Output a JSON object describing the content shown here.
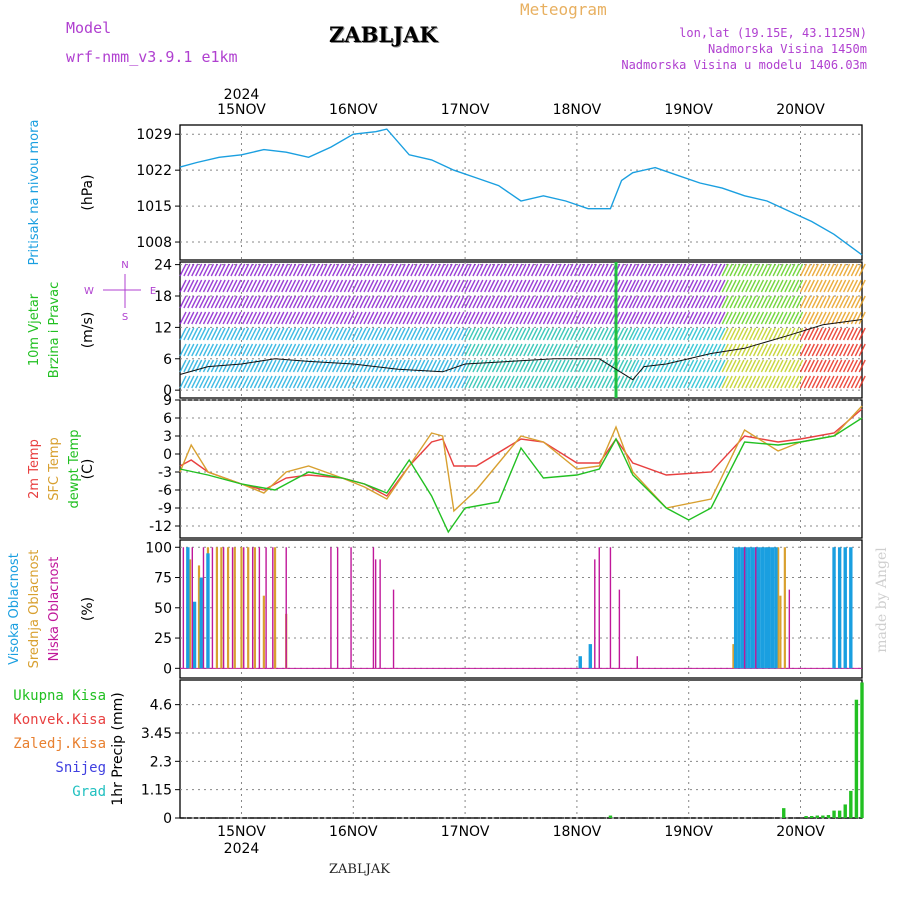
{
  "header": {
    "model_label": "Model",
    "model_name": "wrf-nmm_v3.9.1 e1km",
    "station": "ZABLJAK",
    "product": "Meteogram",
    "lonlat": "lon,lat (19.15E, 43.1125N)",
    "elevation": "Nadmorska Visina 1450m",
    "elevation_model": "Nadmorska Visina u modelu 1406.03m",
    "credit": "made by Angel",
    "footer_station": "ZABLJAK"
  },
  "colors": {
    "pressure": "#1a9fe0",
    "wind_label": "#22c022",
    "temp": "#e84040",
    "sfc_temp": "#d8a030",
    "dewpt": "#22c022",
    "cloud_high": "#1a9fe0",
    "cloud_mid": "#d8a030",
    "cloud_low": "#c0189a",
    "precip_total": "#22c022",
    "precip_conv": "#e84040",
    "precip_strat": "#e88030",
    "snow": "#4040e0",
    "hail": "#20c0c0",
    "model_header": "#b040d0",
    "product_header": "#e8b060"
  },
  "chart_data": {
    "type": "line",
    "x_dates": [
      "15NOV",
      "16NOV",
      "17NOV",
      "18NOV",
      "19NOV",
      "20NOV"
    ],
    "year": "2024",
    "x_unit": "days from 15NOV 00Z",
    "x_range": [
      -0.55,
      5.55
    ],
    "panels": [
      {
        "id": "pressure",
        "title": "Pritisak na nivou mora",
        "ylabel": "(hPa)",
        "yticks": [
          "1029",
          "1022",
          "1015",
          "1008"
        ],
        "ylim": [
          1004.5,
          1030.8
        ],
        "series": [
          {
            "name": "Pritisak na nivou mora",
            "x": [
              -0.55,
              -0.4,
              -0.2,
              0.0,
              0.2,
              0.4,
              0.6,
              0.8,
              1.0,
              1.2,
              1.3,
              1.5,
              1.7,
              1.9,
              2.1,
              2.3,
              2.5,
              2.7,
              2.9,
              3.1,
              3.3,
              3.4,
              3.5,
              3.7,
              3.9,
              4.1,
              4.3,
              4.5,
              4.7,
              4.9,
              5.1,
              5.3,
              5.55
            ],
            "y": [
              1022.6,
              1023.5,
              1024.5,
              1025.0,
              1026.0,
              1025.5,
              1024.5,
              1026.5,
              1029.0,
              1029.5,
              1030.0,
              1025.0,
              1024.0,
              1022.0,
              1020.5,
              1019.0,
              1016.0,
              1017.0,
              1016.0,
              1014.5,
              1014.5,
              1020.0,
              1021.5,
              1022.5,
              1021.0,
              1019.5,
              1018.5,
              1017.0,
              1016.0,
              1014.0,
              1012.0,
              1009.5,
              1005.5
            ]
          }
        ]
      },
      {
        "id": "wind",
        "title": "10m Vjetar Brzina i Pravac",
        "ylabel": "(m/s)",
        "yticks": [
          "24",
          "18",
          "12",
          "6",
          "0"
        ],
        "ylim": [
          -1.5,
          24.5
        ],
        "compass": {
          "n": "N",
          "s": "S",
          "e": "E",
          "w": "W"
        },
        "series": [
          {
            "name": "10m Vjetar",
            "x": [
              -0.55,
              -0.3,
              0.0,
              0.3,
              0.6,
              1.0,
              1.4,
              1.8,
              2.0,
              2.4,
              2.8,
              3.2,
              3.5,
              3.6,
              3.8,
              4.2,
              4.5,
              4.9,
              5.2,
              5.55
            ],
            "y": [
              3.0,
              4.5,
              5.0,
              6.0,
              5.5,
              5.0,
              4.0,
              3.5,
              5.0,
              5.5,
              6.0,
              6.0,
              2.0,
              4.5,
              5.0,
              7.0,
              8.0,
              10.5,
              12.5,
              13.5
            ]
          }
        ]
      },
      {
        "id": "temperature",
        "title": "2m Temp",
        "ylabel": "(C)",
        "yticks": [
          "9",
          "6",
          "3",
          "0",
          "-3",
          "-6",
          "-9",
          "-12"
        ],
        "ylim": [
          -14,
          9
        ],
        "series": [
          {
            "name": "2m Temp",
            "x": [
              -0.55,
              -0.45,
              -0.3,
              0.0,
              0.2,
              0.4,
              0.6,
              0.9,
              1.1,
              1.3,
              1.5,
              1.7,
              1.8,
              1.9,
              2.1,
              2.5,
              2.7,
              3.0,
              3.2,
              3.35,
              3.5,
              3.8,
              4.2,
              4.5,
              4.8,
              5.0,
              5.3,
              5.55
            ],
            "y": [
              -2.0,
              -1.0,
              -3.0,
              -5.0,
              -6.0,
              -4.0,
              -3.5,
              -4.0,
              -5.0,
              -7.0,
              -2.0,
              2.0,
              2.5,
              -2.0,
              -2.0,
              2.5,
              2.0,
              -1.5,
              -1.5,
              2.5,
              -1.5,
              -3.5,
              -3.0,
              3.0,
              2.0,
              2.5,
              3.5,
              7.5
            ]
          },
          {
            "name": "SFC Temp",
            "x": [
              -0.55,
              -0.45,
              -0.3,
              0.0,
              0.2,
              0.4,
              0.6,
              0.9,
              1.1,
              1.3,
              1.5,
              1.7,
              1.8,
              1.9,
              2.1,
              2.5,
              2.7,
              3.0,
              3.2,
              3.35,
              3.5,
              3.8,
              4.2,
              4.5,
              4.8,
              5.0,
              5.3,
              5.55
            ],
            "y": [
              -3.0,
              1.5,
              -3.0,
              -5.0,
              -6.5,
              -3.0,
              -2.0,
              -4.0,
              -5.5,
              -7.5,
              -2.0,
              3.5,
              3.0,
              -9.5,
              -6.0,
              3.0,
              2.0,
              -2.5,
              -2.0,
              4.5,
              -3.0,
              -9.0,
              -7.5,
              4.0,
              0.5,
              2.0,
              3.0,
              8.0
            ]
          },
          {
            "name": "dewpt Temp",
            "x": [
              -0.55,
              -0.3,
              0.0,
              0.3,
              0.6,
              0.9,
              1.1,
              1.3,
              1.5,
              1.7,
              1.85,
              2.0,
              2.3,
              2.5,
              2.7,
              3.0,
              3.2,
              3.35,
              3.5,
              3.8,
              4.0,
              4.2,
              4.5,
              4.8,
              5.0,
              5.3,
              5.55
            ],
            "y": [
              -2.5,
              -3.5,
              -5.0,
              -6.0,
              -3.0,
              -4.0,
              -5.0,
              -6.5,
              -1.0,
              -7.0,
              -13.0,
              -9.0,
              -8.0,
              1.0,
              -4.0,
              -3.5,
              -2.5,
              2.5,
              -3.5,
              -9.0,
              -11.0,
              -9.0,
              2.0,
              1.5,
              2.0,
              3.0,
              6.0
            ]
          }
        ]
      },
      {
        "id": "cloud",
        "title": "Oblacnost",
        "ylabel": "(%)",
        "yticks": [
          "100",
          "75",
          "50",
          "25",
          "0"
        ],
        "ylim": [
          -8,
          106
        ],
        "bars_high": [
          [
            -0.48,
            100
          ],
          [
            -0.42,
            55
          ],
          [
            -0.36,
            75
          ],
          [
            -0.3,
            95
          ],
          [
            3.03,
            10
          ],
          [
            3.12,
            20
          ],
          [
            4.42,
            100
          ],
          [
            4.45,
            100
          ],
          [
            4.48,
            100
          ],
          [
            4.51,
            100
          ],
          [
            4.54,
            100
          ],
          [
            4.57,
            100
          ],
          [
            4.6,
            100
          ],
          [
            4.63,
            100
          ],
          [
            4.66,
            100
          ],
          [
            4.69,
            100
          ],
          [
            4.72,
            100
          ],
          [
            4.75,
            100
          ],
          [
            4.78,
            100
          ],
          [
            5.3,
            100
          ],
          [
            5.35,
            100
          ],
          [
            5.4,
            100
          ],
          [
            5.45,
            100
          ]
        ],
        "bars_mid": [
          [
            -0.46,
            90
          ],
          [
            -0.38,
            85
          ],
          [
            -0.3,
            100
          ],
          [
            -0.22,
            100
          ],
          [
            -0.18,
            100
          ],
          [
            -0.12,
            100
          ],
          [
            -0.06,
            100
          ],
          [
            0.0,
            100
          ],
          [
            0.06,
            100
          ],
          [
            0.12,
            100
          ],
          [
            0.2,
            60
          ],
          [
            0.3,
            100
          ],
          [
            0.3,
            25
          ],
          [
            0.4,
            45
          ],
          [
            4.4,
            20
          ],
          [
            4.7,
            100
          ],
          [
            4.8,
            100
          ],
          [
            4.82,
            60
          ],
          [
            4.86,
            100
          ]
        ],
        "bars_low": [
          [
            -0.52,
            100
          ],
          [
            -0.44,
            100
          ],
          [
            -0.34,
            100
          ],
          [
            -0.26,
            100
          ],
          [
            -0.16,
            100
          ],
          [
            -0.08,
            100
          ],
          [
            0.02,
            100
          ],
          [
            0.1,
            100
          ],
          [
            0.16,
            100
          ],
          [
            0.22,
            100
          ],
          [
            0.28,
            100
          ],
          [
            0.4,
            100
          ],
          [
            0.8,
            100
          ],
          [
            0.86,
            100
          ],
          [
            0.98,
            100
          ],
          [
            1.18,
            100
          ],
          [
            1.2,
            90
          ],
          [
            1.24,
            90
          ],
          [
            1.36,
            65
          ],
          [
            3.16,
            90
          ],
          [
            3.2,
            100
          ],
          [
            3.3,
            100
          ],
          [
            3.38,
            65
          ],
          [
            3.54,
            10
          ],
          [
            4.5,
            100
          ],
          [
            4.6,
            100
          ],
          [
            4.9,
            65
          ]
        ]
      },
      {
        "id": "precip",
        "title": "1hr Precip",
        "ylabel": "1hr Precip (mm)",
        "yticks": [
          "4.6",
          "3.45",
          "2.3",
          "1.15",
          "0"
        ],
        "ylim": [
          0,
          5.6
        ],
        "bars_total": [
          [
            3.3,
            0.1
          ],
          [
            4.85,
            0.4
          ],
          [
            5.05,
            0.08
          ],
          [
            5.1,
            0.08
          ],
          [
            5.15,
            0.1
          ],
          [
            5.2,
            0.1
          ],
          [
            5.25,
            0.12
          ],
          [
            5.3,
            0.3
          ],
          [
            5.35,
            0.3
          ],
          [
            5.4,
            0.55
          ],
          [
            5.45,
            1.1
          ],
          [
            5.5,
            4.8
          ],
          [
            5.55,
            5.5
          ]
        ]
      }
    ],
    "legend_side": {
      "pressure": [
        "Pritisak na nivou mora"
      ],
      "wind": [
        "10m Vjetar",
        "Brzina i Pravac"
      ],
      "temperature": [
        "2m Temp",
        "SFC Temp",
        "dewpt Temp"
      ],
      "cloud": [
        "Visoka Oblacnost",
        "Srednja Oblacnost",
        "Niska Oblacnost"
      ],
      "precip": [
        "Ukupna Kisa",
        "Konvek.Kisa",
        "Zaledj.Kisa",
        "Snijeg",
        "Grad"
      ]
    }
  }
}
